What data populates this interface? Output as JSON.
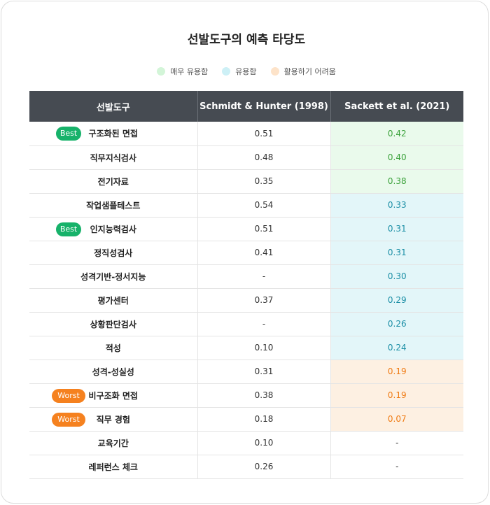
{
  "title": "선발도구의 예측 타당도",
  "legend": [
    {
      "label": "매우 유용함",
      "color": "#d3f5d8"
    },
    {
      "label": "유용함",
      "color": "#cdf0f6"
    },
    {
      "label": "활용하기 어려움",
      "color": "#fde3c9"
    }
  ],
  "headers": [
    "선발도구",
    "Schmidt & Hunter (1998)",
    "Sackett et al. (2021)"
  ],
  "rows": [
    {
      "name": "구조화된 면접",
      "badge": "Best",
      "sh": "0.51",
      "sackett": "0.42",
      "tier": "green"
    },
    {
      "name": "직무지식검사",
      "badge": "",
      "sh": "0.48",
      "sackett": "0.40",
      "tier": "green"
    },
    {
      "name": "전기자료",
      "badge": "",
      "sh": "0.35",
      "sackett": "0.38",
      "tier": "green"
    },
    {
      "name": "작업샘플테스트",
      "badge": "",
      "sh": "0.54",
      "sackett": "0.33",
      "tier": "cyan"
    },
    {
      "name": "인지능력검사",
      "badge": "Best",
      "sh": "0.51",
      "sackett": "0.31",
      "tier": "cyan"
    },
    {
      "name": "정직성검사",
      "badge": "",
      "sh": "0.41",
      "sackett": "0.31",
      "tier": "cyan"
    },
    {
      "name": "성격기반-정서지능",
      "badge": "",
      "sh": "-",
      "sackett": "0.30",
      "tier": "cyan"
    },
    {
      "name": "평가센터",
      "badge": "",
      "sh": "0.37",
      "sackett": "0.29",
      "tier": "cyan"
    },
    {
      "name": "상황판단검사",
      "badge": "",
      "sh": "-",
      "sackett": "0.26",
      "tier": "cyan"
    },
    {
      "name": "적성",
      "badge": "",
      "sh": "0.10",
      "sackett": "0.24",
      "tier": "cyan"
    },
    {
      "name": "성격-성실성",
      "badge": "",
      "sh": "0.31",
      "sackett": "0.19",
      "tier": "orange"
    },
    {
      "name": "비구조화 면접",
      "badge": "Worst",
      "sh": "0.38",
      "sackett": "0.19",
      "tier": "orange"
    },
    {
      "name": "직무 경험",
      "badge": "Worst",
      "sh": "0.18",
      "sackett": "0.07",
      "tier": "orange"
    },
    {
      "name": "교육기간",
      "badge": "",
      "sh": "0.10",
      "sackett": "-",
      "tier": ""
    },
    {
      "name": "레퍼런스 체크",
      "badge": "",
      "sh": "0.26",
      "sackett": "-",
      "tier": ""
    }
  ]
}
